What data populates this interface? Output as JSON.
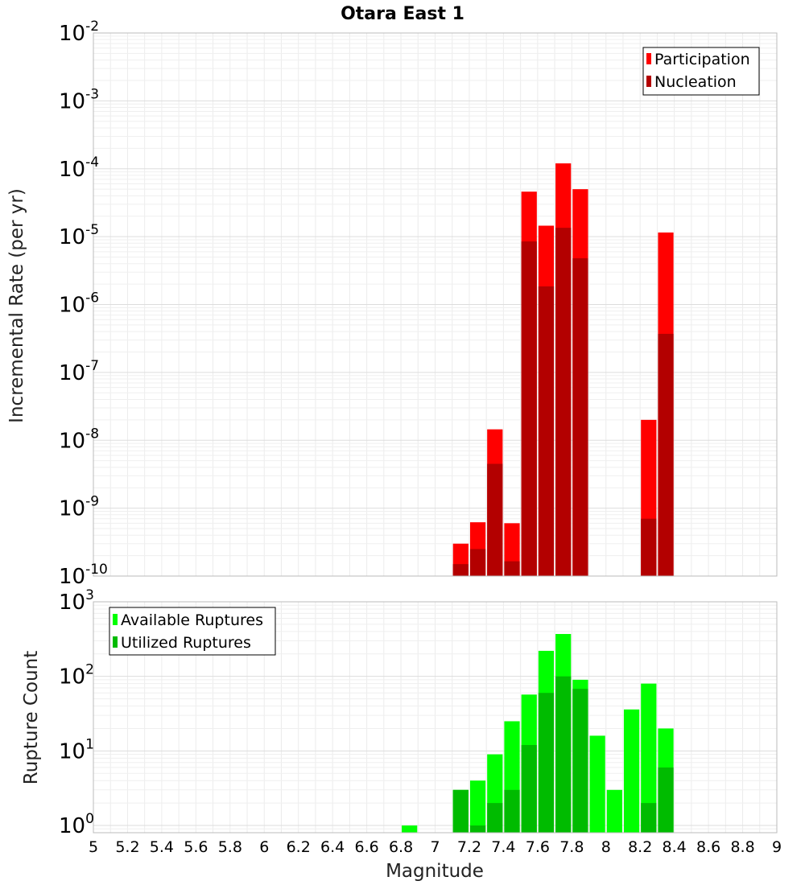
{
  "chart_data": [
    {
      "type": "bar",
      "title": "Otara East 1",
      "ylabel": "Incremental Rate (per yr)",
      "xlabel": "",
      "xlim": [
        5,
        9
      ],
      "ylim": [
        1e-10,
        0.01
      ],
      "yscale": "log",
      "bin_width": 0.1,
      "legend_position": "top-right",
      "grid": true,
      "ytick_exponents": [
        -10,
        -9,
        -8,
        -7,
        -6,
        -5,
        -4,
        -3,
        -2
      ],
      "series": [
        {
          "name": "Participation",
          "color": "#ff0000",
          "x": [
            7.15,
            7.25,
            7.35,
            7.45,
            7.55,
            7.65,
            7.75,
            7.85,
            8.25,
            8.35
          ],
          "values": [
            3e-10,
            6.2e-10,
            1.45e-08,
            6e-10,
            4.6e-05,
            1.45e-05,
            0.00012,
            5e-05,
            2e-08,
            1.15e-05
          ]
        },
        {
          "name": "Nucleation",
          "color": "#b30000",
          "x": [
            7.15,
            7.25,
            7.35,
            7.45,
            7.55,
            7.65,
            7.75,
            7.85,
            8.25,
            8.35
          ],
          "values": [
            1.5e-10,
            2.5e-10,
            4.5e-09,
            1.65e-10,
            8.5e-06,
            1.85e-06,
            1.35e-05,
            4.8e-06,
            7e-10,
            3.7e-07
          ]
        }
      ]
    },
    {
      "type": "bar",
      "title": "",
      "ylabel": "Rupture Count",
      "xlabel": "Magnitude",
      "xlim": [
        5,
        9
      ],
      "ylim": [
        0.8,
        1000
      ],
      "yscale": "log",
      "bin_width": 0.1,
      "legend_position": "top-left",
      "grid": true,
      "ytick_exponents": [
        0,
        1,
        2,
        3
      ],
      "xticks": [
        "5",
        "5.2",
        "5.4",
        "5.6",
        "5.8",
        "6",
        "6.2",
        "6.4",
        "6.6",
        "6.8",
        "7",
        "7.2",
        "7.4",
        "7.6",
        "7.8",
        "8",
        "8.2",
        "8.4",
        "8.6",
        "8.8",
        "9"
      ],
      "series": [
        {
          "name": "Available Ruptures",
          "color": "#00ff00",
          "x": [
            6.85,
            7.15,
            7.25,
            7.35,
            7.45,
            7.55,
            7.65,
            7.75,
            7.85,
            7.95,
            8.05,
            8.15,
            8.25,
            8.35
          ],
          "values": [
            1,
            3,
            4,
            9,
            25,
            57,
            220,
            370,
            90,
            16,
            3,
            36,
            80,
            20
          ]
        },
        {
          "name": "Utilized Ruptures",
          "color": "#00bb00",
          "x": [
            7.15,
            7.25,
            7.35,
            7.45,
            7.55,
            7.65,
            7.75,
            7.85,
            8.25,
            8.35
          ],
          "values": [
            3,
            1,
            2,
            3,
            12,
            60,
            100,
            68,
            2,
            6
          ]
        }
      ]
    }
  ]
}
